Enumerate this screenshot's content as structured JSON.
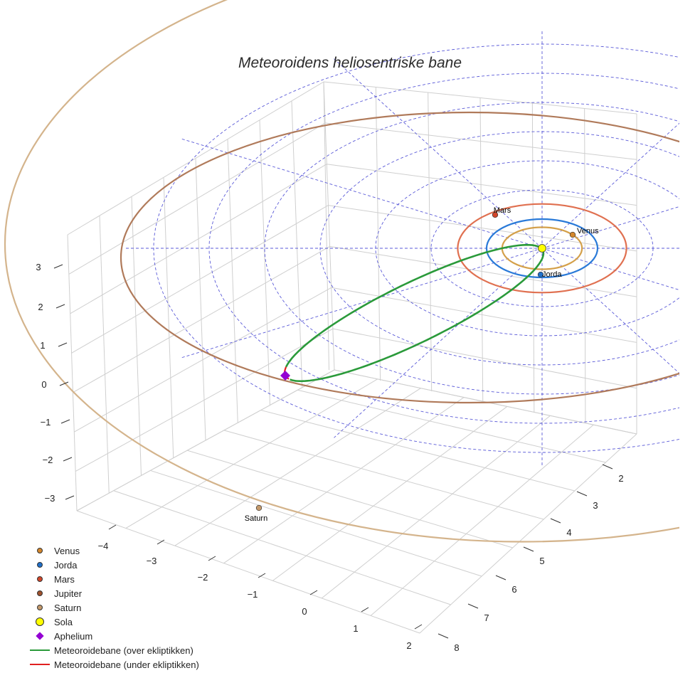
{
  "chart_data": {
    "type": "line",
    "title": "Meteoroidens heliosentriske bane",
    "projection": "3d",
    "x_ticks": [
      "−4",
      "−3",
      "−2",
      "−1",
      "0",
      "1",
      "2"
    ],
    "y_ticks": [
      "2",
      "3",
      "4",
      "5",
      "6",
      "7",
      "8"
    ],
    "z_ticks": [
      "3",
      "2",
      "1",
      "0",
      "−1",
      "−2",
      "−3"
    ],
    "grid": true,
    "legend_position": "bottom-left",
    "orbit_radii_au": {
      "Venus": 0.72,
      "Jorda": 1.0,
      "Mars": 1.52,
      "Jupiter": 5.2,
      "Saturn": 9.54
    },
    "planets": [
      {
        "name": "Venus",
        "label": "Venus",
        "color": "#d4872c",
        "orbit_color": "#d4a04a"
      },
      {
        "name": "Jorda",
        "label": "Jorda",
        "color": "#1f6fc9",
        "orbit_color": "#2a7ad8"
      },
      {
        "name": "Mars",
        "label": "Mars",
        "color": "#d2462a",
        "orbit_color": "#e07050"
      },
      {
        "name": "Jupiter",
        "label": "",
        "color": "#a0522d",
        "orbit_color": "#b07a5a"
      },
      {
        "name": "Saturn",
        "label": "Saturn",
        "color": "#c49a6c",
        "orbit_color": "#d4b48c"
      }
    ],
    "sun": {
      "name": "Sola",
      "color": "#ffff00"
    },
    "aphelion": {
      "name": "Aphelium",
      "color": "#9400d3"
    },
    "series": [
      {
        "name": "Meteoroidebane (over ekliptikken)",
        "color": "#2a9a3a"
      },
      {
        "name": "Meteoroidebane (under ekliptikken)",
        "color": "#e02020"
      }
    ]
  },
  "legend": [
    {
      "label": "Venus",
      "color": "#d4872c",
      "symbol": "dot"
    },
    {
      "label": "Jorda",
      "color": "#1f6fc9",
      "symbol": "dot"
    },
    {
      "label": "Mars",
      "color": "#d2462a",
      "symbol": "dot"
    },
    {
      "label": "Jupiter",
      "color": "#a0522d",
      "symbol": "dot"
    },
    {
      "label": "Saturn",
      "color": "#c49a6c",
      "symbol": "dot"
    },
    {
      "label": "Sola",
      "color": "#ffff00",
      "symbol": "bigdot"
    },
    {
      "label": "Aphelium",
      "color": "#9400d3",
      "symbol": "diamond"
    },
    {
      "label": "Meteoroidebane (over ekliptikken)",
      "color": "#2a9a3a",
      "symbol": "line"
    },
    {
      "label": "Meteoroidebane (under ekliptikken)",
      "color": "#e02020",
      "symbol": "line"
    }
  ]
}
